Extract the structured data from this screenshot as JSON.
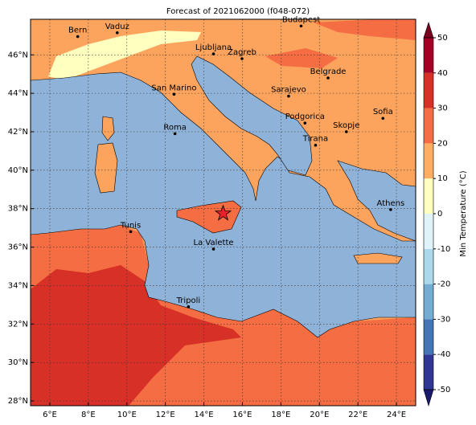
{
  "title": "Forecast of 2021062000 (f048-072)",
  "map": {
    "lonlim": [
      5,
      25
    ],
    "latlim": [
      27.75,
      47.85
    ],
    "xticks": [
      {
        "value": 6,
        "label": "6°E"
      },
      {
        "value": 8,
        "label": "8°E"
      },
      {
        "value": 10,
        "label": "10°E"
      },
      {
        "value": 12,
        "label": "12°E"
      },
      {
        "value": 14,
        "label": "14°E"
      },
      {
        "value": 16,
        "label": "16°E"
      },
      {
        "value": 18,
        "label": "18°E"
      },
      {
        "value": 20,
        "label": "20°E"
      },
      {
        "value": 22,
        "label": "22°E"
      },
      {
        "value": 24,
        "label": "24°E"
      }
    ],
    "yticks": [
      {
        "value": 28,
        "label": "28°N"
      },
      {
        "value": 30,
        "label": "30°N"
      },
      {
        "value": 32,
        "label": "32°N"
      },
      {
        "value": 34,
        "label": "34°N"
      },
      {
        "value": 36,
        "label": "36°N"
      },
      {
        "value": 38,
        "label": "38°N"
      },
      {
        "value": 40,
        "label": "40°N"
      },
      {
        "value": 42,
        "label": "42°N"
      },
      {
        "value": 44,
        "label": "44°N"
      },
      {
        "value": 46,
        "label": "46°N"
      }
    ],
    "cities": [
      {
        "name": "Bern",
        "lon": 7.45,
        "lat": 46.95
      },
      {
        "name": "Vaduz",
        "lon": 9.5,
        "lat": 47.15
      },
      {
        "name": "Budapest",
        "lon": 19.05,
        "lat": 47.5
      },
      {
        "name": "Ljubljana",
        "lon": 14.5,
        "lat": 46.05
      },
      {
        "name": "Zagreb",
        "lon": 15.98,
        "lat": 45.8
      },
      {
        "name": "Belgrade",
        "lon": 20.45,
        "lat": 44.8
      },
      {
        "name": "San Marino",
        "lon": 12.45,
        "lat": 43.95
      },
      {
        "name": "Sarajevo",
        "lon": 18.4,
        "lat": 43.85
      },
      {
        "name": "Sofia",
        "lon": 23.3,
        "lat": 42.7
      },
      {
        "name": "Roma",
        "lon": 12.5,
        "lat": 41.9
      },
      {
        "name": "Podgorica",
        "lon": 19.25,
        "lat": 42.45
      },
      {
        "name": "Skopje",
        "lon": 21.4,
        "lat": 42.0
      },
      {
        "name": "Tirana",
        "lon": 19.8,
        "lat": 41.3
      },
      {
        "name": "Athens",
        "lon": 23.7,
        "lat": 37.95
      },
      {
        "name": "Tunis",
        "lon": 10.2,
        "lat": 36.8
      },
      {
        "name": "La Valette",
        "lon": 14.5,
        "lat": 35.9
      },
      {
        "name": "Tripoli",
        "lon": 13.2,
        "lat": 32.9
      }
    ],
    "marker": {
      "lon": 15.0,
      "lat": 37.75
    }
  },
  "colorbar": {
    "label": "Min Temperature (°C)",
    "ticks": [
      -50,
      -40,
      -30,
      -20,
      -10,
      0,
      10,
      20,
      30,
      40,
      50
    ],
    "colors": [
      "#313695",
      "#4575b4",
      "#74add1",
      "#abd9e9",
      "#e0f3f8",
      "#ffffbf",
      "#fdae61",
      "#f46d43",
      "#d73027",
      "#a50026"
    ],
    "under": "#1a1a6e",
    "over": "#7a0020"
  }
}
